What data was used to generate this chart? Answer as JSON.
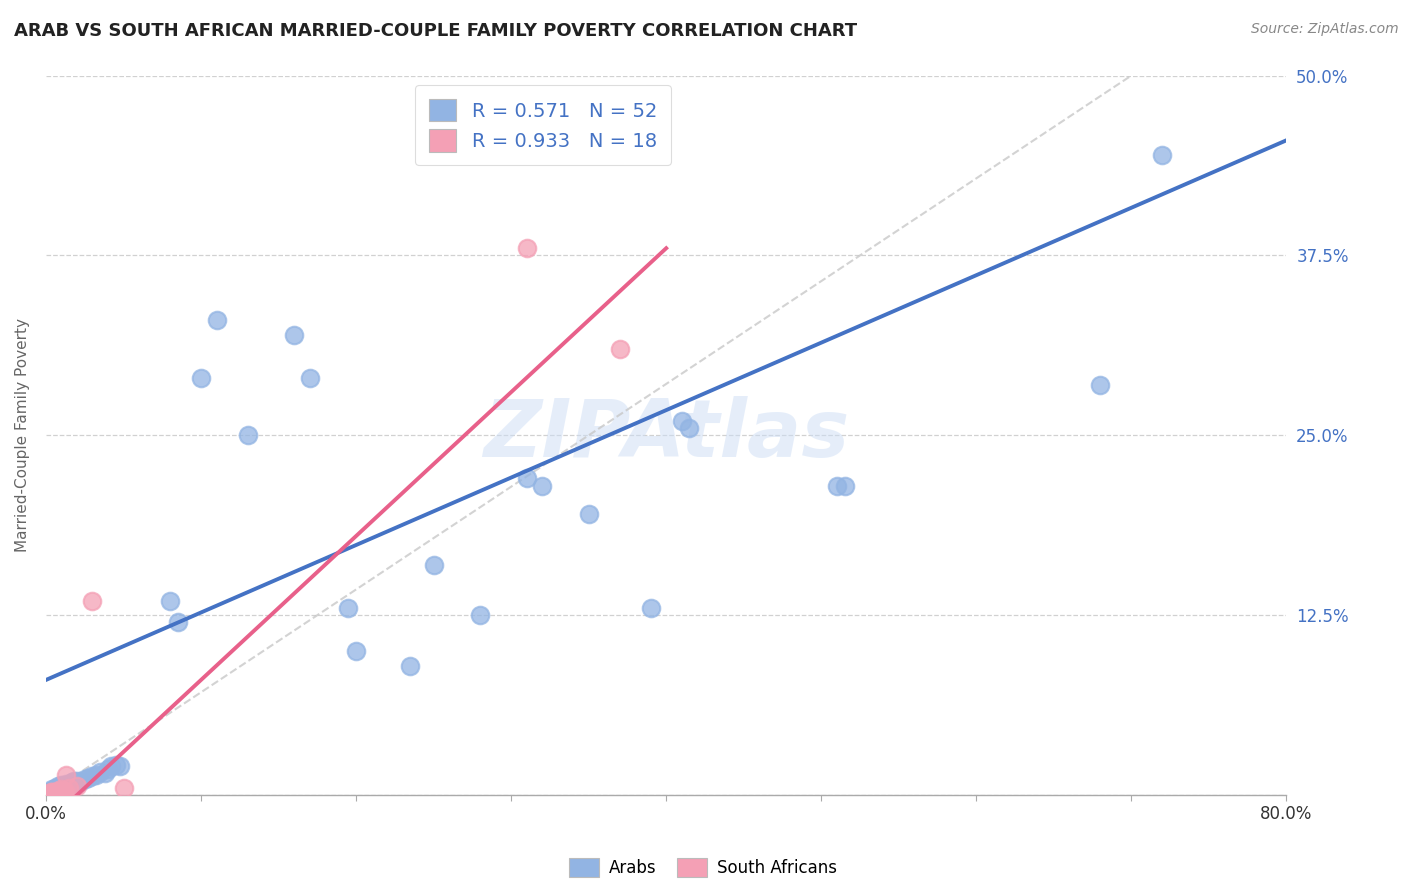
{
  "title": "ARAB VS SOUTH AFRICAN MARRIED-COUPLE FAMILY POVERTY CORRELATION CHART",
  "source": "Source: ZipAtlas.com",
  "ylabel": "Married-Couple Family Poverty",
  "xlim": [
    0.0,
    0.8
  ],
  "ylim": [
    0.0,
    0.5
  ],
  "xticks": [
    0.0,
    0.1,
    0.2,
    0.3,
    0.4,
    0.5,
    0.6,
    0.7,
    0.8
  ],
  "xticklabels": [
    "0.0%",
    "",
    "",
    "",
    "",
    "",
    "",
    "",
    "80.0%"
  ],
  "yticks": [
    0.0,
    0.125,
    0.25,
    0.375,
    0.5
  ],
  "yticklabels": [
    "",
    "12.5%",
    "25.0%",
    "37.5%",
    "50.0%"
  ],
  "arab_R": "0.571",
  "arab_N": "52",
  "sa_R": "0.933",
  "sa_N": "18",
  "arab_color": "#92b4e3",
  "sa_color": "#f4a0b5",
  "arab_line_color": "#4472c4",
  "sa_line_color": "#e8608a",
  "diagonal_color": "#c8c8c8",
  "watermark": "ZIPAtlas",
  "arab_line": [
    0.0,
    0.08,
    0.8,
    0.455
  ],
  "sa_line": [
    0.0,
    -0.02,
    0.4,
    0.38
  ],
  "arab_points": [
    [
      0.002,
      0.002
    ],
    [
      0.003,
      0.003
    ],
    [
      0.004,
      0.004
    ],
    [
      0.005,
      0.003
    ],
    [
      0.006,
      0.005
    ],
    [
      0.007,
      0.004
    ],
    [
      0.008,
      0.006
    ],
    [
      0.009,
      0.005
    ],
    [
      0.01,
      0.007
    ],
    [
      0.011,
      0.005
    ],
    [
      0.012,
      0.006
    ],
    [
      0.013,
      0.008
    ],
    [
      0.014,
      0.006
    ],
    [
      0.015,
      0.008
    ],
    [
      0.016,
      0.007
    ],
    [
      0.017,
      0.009
    ],
    [
      0.018,
      0.01
    ],
    [
      0.019,
      0.008
    ],
    [
      0.02,
      0.01
    ],
    [
      0.022,
      0.009
    ],
    [
      0.025,
      0.011
    ],
    [
      0.027,
      0.012
    ],
    [
      0.03,
      0.013
    ],
    [
      0.032,
      0.014
    ],
    [
      0.035,
      0.016
    ],
    [
      0.038,
      0.015
    ],
    [
      0.04,
      0.018
    ],
    [
      0.042,
      0.02
    ],
    [
      0.045,
      0.021
    ],
    [
      0.048,
      0.02
    ],
    [
      0.08,
      0.135
    ],
    [
      0.085,
      0.12
    ],
    [
      0.1,
      0.29
    ],
    [
      0.11,
      0.33
    ],
    [
      0.13,
      0.25
    ],
    [
      0.16,
      0.32
    ],
    [
      0.17,
      0.29
    ],
    [
      0.195,
      0.13
    ],
    [
      0.2,
      0.1
    ],
    [
      0.235,
      0.09
    ],
    [
      0.25,
      0.16
    ],
    [
      0.28,
      0.125
    ],
    [
      0.31,
      0.22
    ],
    [
      0.32,
      0.215
    ],
    [
      0.35,
      0.195
    ],
    [
      0.39,
      0.13
    ],
    [
      0.41,
      0.26
    ],
    [
      0.415,
      0.255
    ],
    [
      0.51,
      0.215
    ],
    [
      0.515,
      0.215
    ],
    [
      0.68,
      0.285
    ],
    [
      0.72,
      0.445
    ]
  ],
  "sa_points": [
    [
      0.002,
      0.001
    ],
    [
      0.003,
      0.002
    ],
    [
      0.004,
      0.002
    ],
    [
      0.005,
      0.001
    ],
    [
      0.006,
      0.002
    ],
    [
      0.007,
      0.003
    ],
    [
      0.008,
      0.002
    ],
    [
      0.009,
      0.003
    ],
    [
      0.01,
      0.004
    ],
    [
      0.011,
      0.003
    ],
    [
      0.012,
      0.003
    ],
    [
      0.013,
      0.014
    ],
    [
      0.015,
      0.005
    ],
    [
      0.02,
      0.006
    ],
    [
      0.03,
      0.135
    ],
    [
      0.05,
      0.005
    ],
    [
      0.31,
      0.38
    ],
    [
      0.37,
      0.31
    ]
  ]
}
